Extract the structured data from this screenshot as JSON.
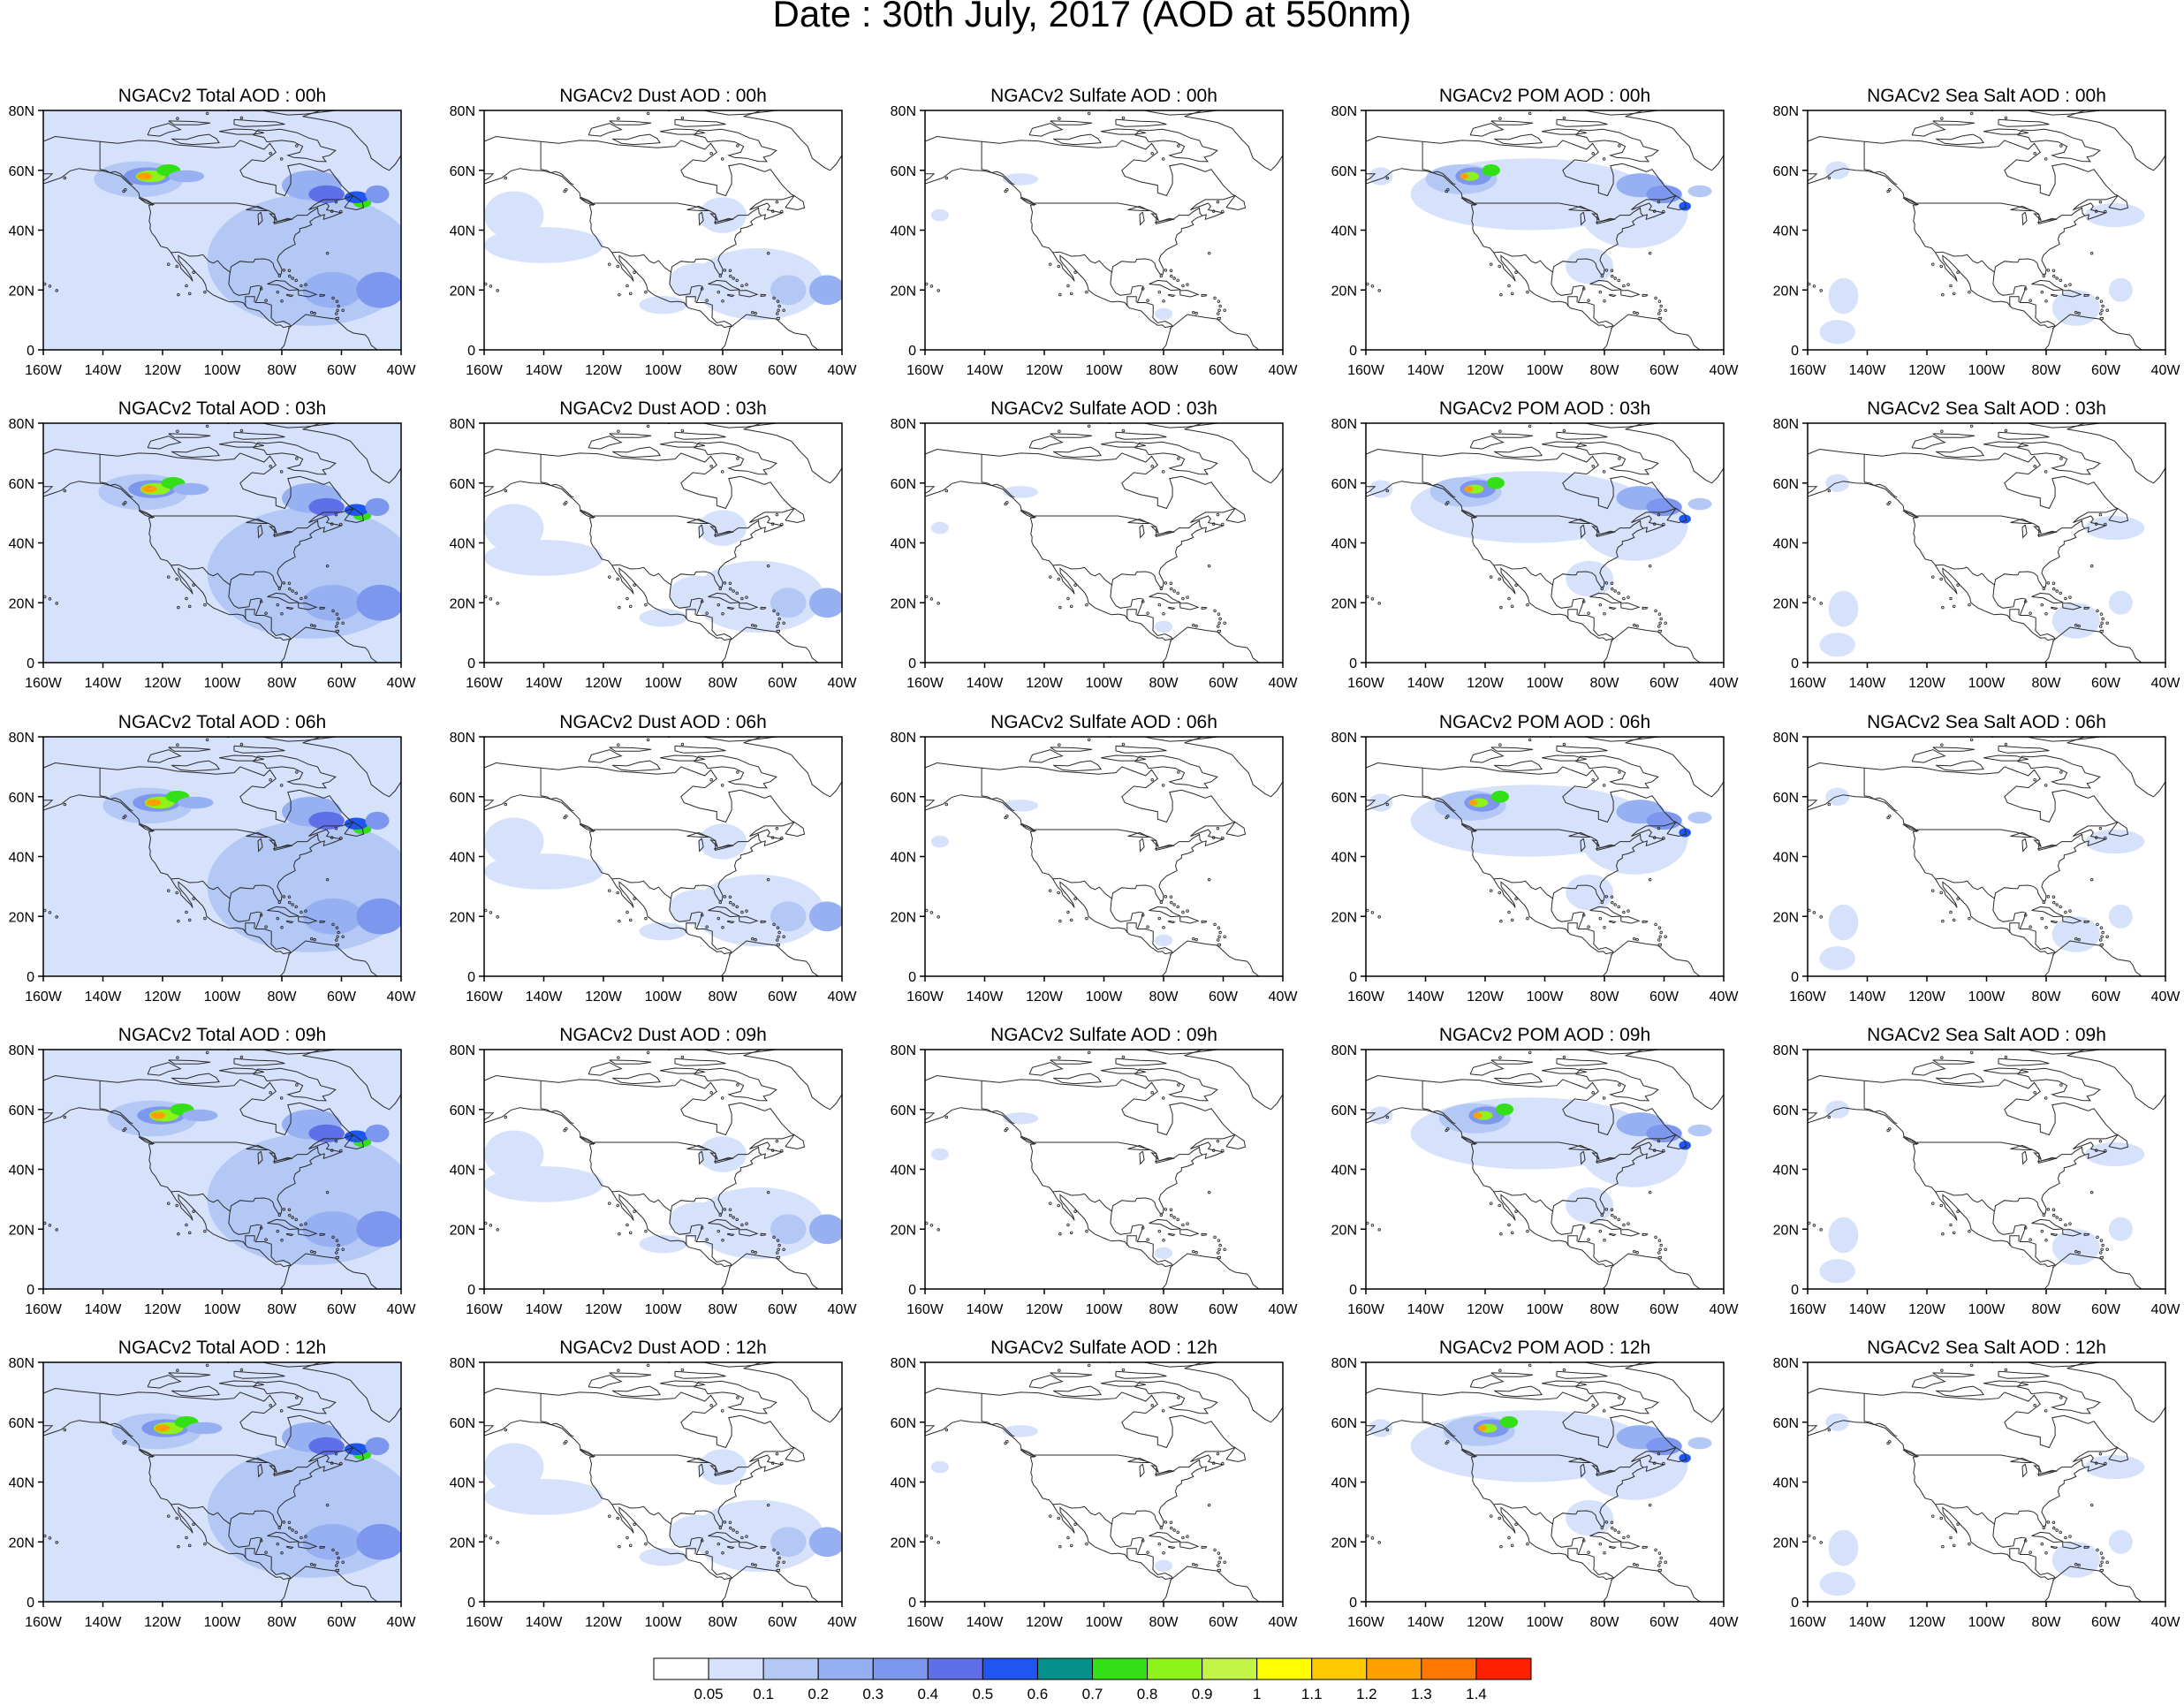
{
  "main_title": "Date : 30th July, 2017 (AOD at 550nm)",
  "columns": [
    "Total",
    "Dust",
    "Sulfate",
    "POM",
    "Sea Salt"
  ],
  "rows": [
    "00h",
    "03h",
    "06h",
    "09h",
    "12h"
  ],
  "panel_titles": [
    [
      "NGACv2 Total AOD : 00h",
      "NGACv2 Dust AOD : 00h",
      "NGACv2 Sulfate AOD : 00h",
      "NGACv2 POM AOD : 00h",
      "NGACv2 Sea Salt AOD : 00h"
    ],
    [
      "NGACv2 Total AOD : 03h",
      "NGACv2 Dust AOD : 03h",
      "NGACv2 Sulfate AOD : 03h",
      "NGACv2 POM AOD : 03h",
      "NGACv2 Sea Salt AOD : 03h"
    ],
    [
      "NGACv2 Total AOD : 06h",
      "NGACv2 Dust AOD : 06h",
      "NGACv2 Sulfate AOD : 06h",
      "NGACv2 POM AOD : 06h",
      "NGACv2 Sea Salt AOD : 06h"
    ],
    [
      "NGACv2 Total AOD : 09h",
      "NGACv2 Dust AOD : 09h",
      "NGACv2 Sulfate AOD : 09h",
      "NGACv2 POM AOD : 09h",
      "NGACv2 Sea Salt  AOD : 09h"
    ],
    [
      "NGACv2 Total AOD  : 12h",
      "NGACv2 Dust AOD : 12h",
      "NGACv2 Sulfate AOD : 12h",
      "NGACv2 POM  AOD : 12h",
      "NGACv2 Sea Salt  AOD : 12h"
    ]
  ],
  "map": {
    "lon_range": [
      -160,
      -40
    ],
    "lat_range": [
      0,
      80
    ],
    "lon_ticks": [
      "160W",
      "140W",
      "120W",
      "100W",
      "80W",
      "60W",
      "40W"
    ],
    "lat_ticks": [
      "0",
      "20N",
      "40N",
      "60N",
      "80N"
    ]
  },
  "colorbar": {
    "colors": [
      "#ffffff",
      "#d6e1fb",
      "#b4c8f6",
      "#96b0f2",
      "#7d97ee",
      "#5f6fe8",
      "#1f56f0",
      "#058f8a",
      "#32e015",
      "#8ef21b",
      "#c2f548",
      "#ffff00",
      "#ffc800",
      "#ffa000",
      "#ff7800",
      "#ff2000"
    ],
    "labels": [
      "0.05",
      "0.1",
      "0.2",
      "0.3",
      "0.4",
      "0.5",
      "0.6",
      "0.7",
      "0.8",
      "0.9",
      "1",
      "1.1",
      "1.2",
      "1.3",
      "1.4"
    ]
  }
}
